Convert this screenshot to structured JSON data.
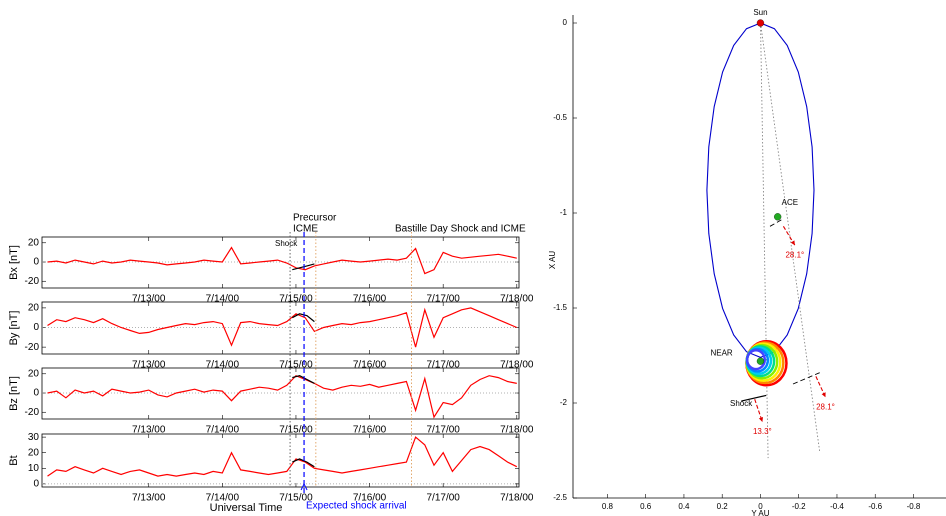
{
  "chart_data": [
    {
      "type": "line-panels",
      "xlabel": "Universal Time",
      "xlim": [
        11.55,
        18.03
      ],
      "xticks": [
        {
          "value": 13,
          "label": "7/13/00"
        },
        {
          "value": 14,
          "label": "7/14/00"
        },
        {
          "value": 15,
          "label": "7/15/00"
        },
        {
          "value": 16,
          "label": "7/16/00"
        },
        {
          "value": 17,
          "label": "7/17/00"
        },
        {
          "value": 18,
          "label": "7/18/00"
        }
      ],
      "x": [
        11.625,
        11.75,
        11.875,
        12,
        12.125,
        12.25,
        12.375,
        12.5,
        12.625,
        12.75,
        12.875,
        13,
        13.125,
        13.25,
        13.375,
        13.5,
        13.625,
        13.75,
        13.875,
        14,
        14.125,
        14.25,
        14.375,
        14.5,
        14.625,
        14.75,
        14.875,
        15,
        15.125,
        15.25,
        15.375,
        15.5,
        15.625,
        15.75,
        15.875,
        16,
        16.125,
        16.25,
        16.375,
        16.5,
        16.625,
        16.75,
        16.875,
        17,
        17.125,
        17.25,
        17.375,
        17.5,
        17.625,
        17.75,
        17.875,
        18
      ],
      "overlay_x": [
        14.95,
        15.05,
        15.15,
        15.25
      ],
      "color": "#ff0000",
      "overlay_color": "#000000",
      "zero_line": true,
      "panels": [
        {
          "ylabel": "Bx [nT]",
          "ylim": [
            -27,
            26
          ],
          "yticks": [
            -20,
            0,
            20
          ],
          "values": [
            0,
            1,
            -1,
            2,
            0,
            -2,
            1,
            -1,
            0,
            2,
            1,
            0,
            -1,
            -3,
            -2,
            -1,
            0,
            2,
            1,
            0,
            15,
            -2,
            -1,
            0,
            1,
            2,
            -1,
            -6,
            -8,
            -4,
            -2,
            0,
            2,
            1,
            0,
            1,
            2,
            3,
            2,
            4,
            14,
            -12,
            -8,
            10,
            6,
            4,
            5,
            6,
            7,
            8,
            6,
            4
          ],
          "overlay_values": [
            -8,
            -6,
            -4,
            -2
          ]
        },
        {
          "ylabel": "By [nT]",
          "ylim": [
            -27,
            26
          ],
          "yticks": [
            -20,
            0,
            20
          ],
          "values": [
            2,
            8,
            6,
            10,
            8,
            5,
            9,
            4,
            0,
            -3,
            -6,
            -5,
            -2,
            0,
            2,
            4,
            3,
            5,
            6,
            4,
            -18,
            5,
            6,
            4,
            3,
            2,
            6,
            14,
            10,
            -4,
            0,
            2,
            4,
            3,
            5,
            6,
            8,
            10,
            12,
            15,
            -20,
            18,
            -10,
            10,
            14,
            18,
            20,
            16,
            12,
            8,
            4,
            0
          ],
          "overlay_values": [
            10,
            14,
            12,
            6
          ]
        },
        {
          "ylabel": "Bz [nT]",
          "ylim": [
            -27,
            26
          ],
          "yticks": [
            -20,
            0,
            20
          ],
          "values": [
            0,
            2,
            -5,
            3,
            0,
            2,
            -3,
            4,
            2,
            0,
            1,
            3,
            -2,
            -4,
            0,
            2,
            4,
            1,
            3,
            2,
            -8,
            2,
            4,
            6,
            5,
            3,
            8,
            18,
            14,
            10,
            5,
            3,
            6,
            8,
            7,
            9,
            6,
            8,
            10,
            12,
            -18,
            15,
            -25,
            -10,
            -12,
            -5,
            8,
            14,
            18,
            16,
            12,
            10
          ],
          "overlay_values": [
            16,
            18,
            14,
            10
          ]
        },
        {
          "ylabel": "Bt",
          "ylim": [
            -2,
            32
          ],
          "yticks": [
            0,
            10,
            20,
            30
          ],
          "values": [
            5,
            9,
            8,
            11,
            9,
            7,
            10,
            8,
            6,
            8,
            9,
            7,
            5,
            6,
            5,
            6,
            7,
            6,
            8,
            7,
            20,
            9,
            8,
            7,
            6,
            7,
            8,
            16,
            14,
            10,
            9,
            8,
            7,
            8,
            9,
            10,
            11,
            12,
            13,
            14,
            30,
            25,
            12,
            20,
            8,
            15,
            22,
            24,
            22,
            18,
            14,
            11
          ],
          "overlay_values": [
            14,
            16,
            14,
            11
          ]
        }
      ],
      "vlines": [
        {
          "x": 14.92,
          "color": "#555555",
          "style": "dotted"
        },
        {
          "x": 15.11,
          "color": "#0000ff",
          "style": "dashed"
        },
        {
          "x": 15.27,
          "color": "#e0a060",
          "style": "dotted"
        },
        {
          "x": 16.57,
          "color": "#e0a060",
          "style": "dotted"
        }
      ],
      "annotations": [
        {
          "text": "Shock"
        },
        {
          "text": "Precursor"
        },
        {
          "text": "ICME"
        },
        {
          "text": "Bastille Day Shock and ICME"
        },
        {
          "text": "Expected shock arrival",
          "color": "#0000ff"
        }
      ]
    },
    {
      "type": "orbit",
      "xlabel": "Y AU",
      "ylabel": "X AU",
      "xlim": [
        0.98,
        -0.97
      ],
      "ylim": [
        -2.5,
        0
      ],
      "xticks": [
        0.8,
        0.6,
        0.4,
        0.2,
        0,
        -0.2,
        -0.4,
        -0.6,
        -0.8
      ],
      "yticks": [
        0,
        -0.5,
        -1,
        -1.5,
        -2,
        -2.5
      ],
      "orbit": {
        "color": "#0000cc",
        "x": [
          0,
          0.073,
          0.14,
          0.198,
          0.242,
          0.27,
          0.28,
          0.27,
          0.242,
          0.198,
          0.14,
          0.073,
          0,
          -0.073,
          -0.14,
          -0.198,
          -0.242,
          -0.27,
          -0.28,
          -0.27,
          -0.242,
          -0.198,
          -0.14,
          -0.073,
          0
        ],
        "y": [
          0,
          -0.03,
          -0.118,
          -0.258,
          -0.44,
          -0.652,
          -0.88,
          -1.108,
          -1.32,
          -1.502,
          -1.642,
          -1.73,
          -1.76,
          -1.73,
          -1.642,
          -1.502,
          -1.32,
          -1.108,
          -0.88,
          -0.652,
          -0.44,
          -0.258,
          -0.118,
          -0.03,
          0
        ]
      },
      "points": [
        {
          "label": "Sun",
          "x": 0,
          "y": 0,
          "color": "#e00000"
        },
        {
          "label": "ACE",
          "x": -0.09,
          "y": -1.02,
          "color": "#22aa22"
        },
        {
          "label": "NEAR",
          "x": 0,
          "y": -1.78,
          "color": "#22aa22"
        }
      ],
      "lines": [
        {
          "x": [
            0,
            -0.04
          ],
          "y": [
            0,
            -2.29
          ],
          "color": "#888888",
          "style": "dotted"
        },
        {
          "x": [
            0,
            -0.31
          ],
          "y": [
            0,
            -2.26
          ],
          "color": "#888888",
          "style": "dotted"
        },
        {
          "x": [
            -0.05,
            -0.12
          ],
          "y": [
            -1.07,
            -1.03
          ],
          "color": "#000000",
          "style": "dashed"
        },
        {
          "x": [
            0.1,
            -0.03
          ],
          "y": [
            -1.99,
            -1.96
          ],
          "color": "#000000",
          "style": "solid"
        },
        {
          "x": [
            -0.17,
            -0.31
          ],
          "y": [
            -1.9,
            -1.84
          ],
          "color": "#000000",
          "style": "dashed"
        }
      ],
      "arrows": [
        {
          "label": "28.1°",
          "x": [
            -0.12,
            -0.18
          ],
          "y": [
            -1.07,
            -1.17
          ],
          "color": "#e00000"
        },
        {
          "label": "28.1°",
          "x": [
            -0.29,
            -0.34
          ],
          "y": [
            -1.86,
            -1.97
          ],
          "color": "#e00000"
        },
        {
          "label": "13.3°",
          "x": [
            0.03,
            -0.01
          ],
          "y": [
            -1.98,
            -2.1
          ],
          "color": "#e00000"
        }
      ],
      "annotations": [
        {
          "text": "Shock"
        }
      ]
    }
  ]
}
